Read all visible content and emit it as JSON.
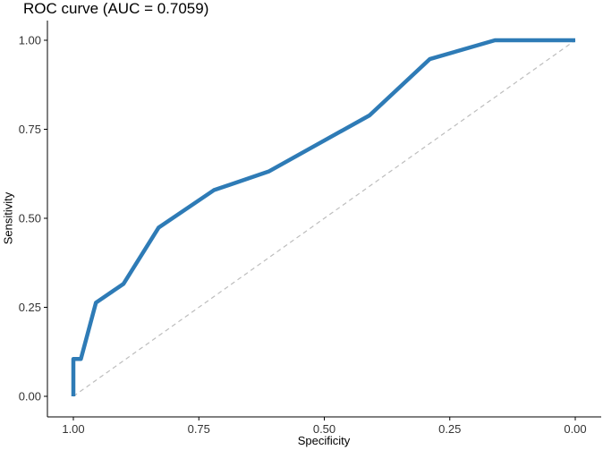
{
  "chart_data": {
    "type": "line",
    "title": "ROC curve (AUC = 0.7059)",
    "xlabel": "Specificity",
    "ylabel": "Sensitivity",
    "x_reversed": true,
    "xlim": [
      1.0,
      0.0
    ],
    "ylim": [
      0.0,
      1.0
    ],
    "xticks": [
      1.0,
      0.75,
      0.5,
      0.25,
      0.0
    ],
    "xtick_labels": [
      "1.00",
      "0.75",
      "0.50",
      "0.25",
      "0.00"
    ],
    "yticks": [
      0.0,
      0.25,
      0.5,
      0.75,
      1.0
    ],
    "ytick_labels": [
      "0.00",
      "0.25",
      "0.50",
      "0.75",
      "1.00"
    ],
    "grid": false,
    "series": [
      {
        "color": "#2e7bb6",
        "x": [
          1.0,
          1.0,
          0.985,
          0.955,
          0.9,
          0.83,
          0.72,
          0.61,
          0.41,
          0.29,
          0.16,
          0.0
        ],
        "y": [
          0.0,
          0.105,
          0.105,
          0.263,
          0.316,
          0.474,
          0.579,
          0.632,
          0.789,
          0.947,
          1.0,
          1.0
        ]
      }
    ],
    "reference_line": {
      "x": [
        1.0,
        0.0
      ],
      "y": [
        0.0,
        1.0
      ],
      "color": "#bdbdbd",
      "style": "dashed"
    }
  }
}
